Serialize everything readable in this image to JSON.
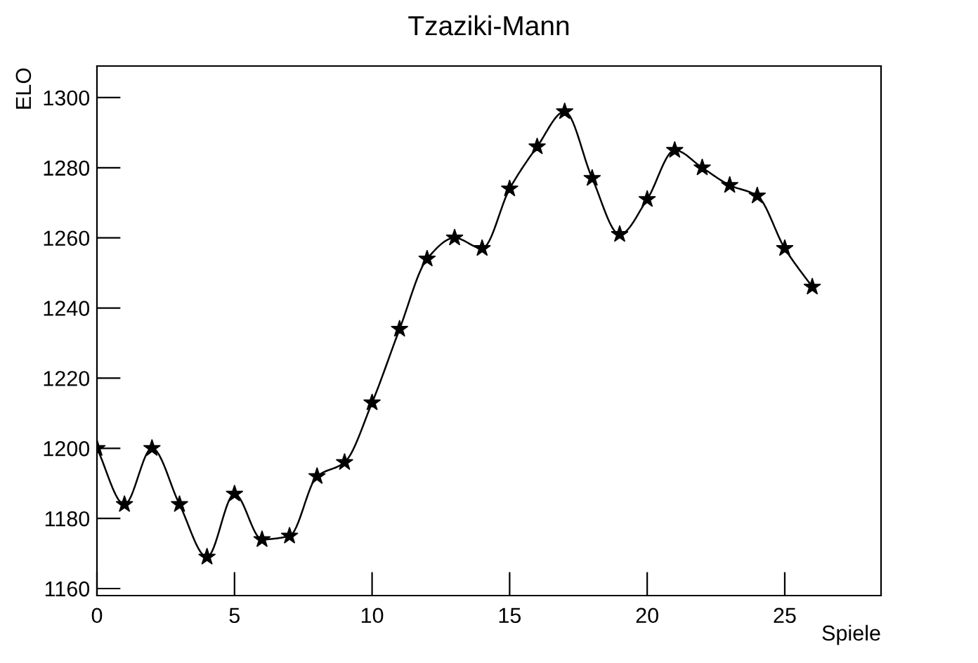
{
  "chart_data": {
    "type": "line",
    "title": "Tzaziki-Mann",
    "xlabel": "Spiele",
    "ylabel": "ELO",
    "x": [
      0,
      1,
      2,
      3,
      4,
      5,
      6,
      7,
      8,
      9,
      10,
      11,
      12,
      13,
      14,
      15,
      16,
      17,
      18,
      19,
      20,
      21,
      22,
      23,
      24,
      25,
      26
    ],
    "series": [
      {
        "color": "#000000",
        "values": [
          1200,
          1184,
          1200,
          1184,
          1169,
          1187,
          1174,
          1175,
          1192,
          1196,
          1213,
          1234,
          1254,
          1260,
          1257,
          1274,
          1286,
          1296,
          1277,
          1261,
          1271,
          1285,
          1280,
          1275,
          1272,
          1257,
          1246
        ]
      }
    ],
    "xlim": [
      0,
      28.5
    ],
    "ylim": [
      1158,
      1309
    ],
    "xticks": [
      0,
      5,
      10,
      15,
      20,
      25
    ],
    "yticks": [
      1160,
      1180,
      1200,
      1220,
      1240,
      1260,
      1280,
      1300
    ],
    "marker": "star",
    "line_style": "solid",
    "grid": false,
    "legend": false
  }
}
